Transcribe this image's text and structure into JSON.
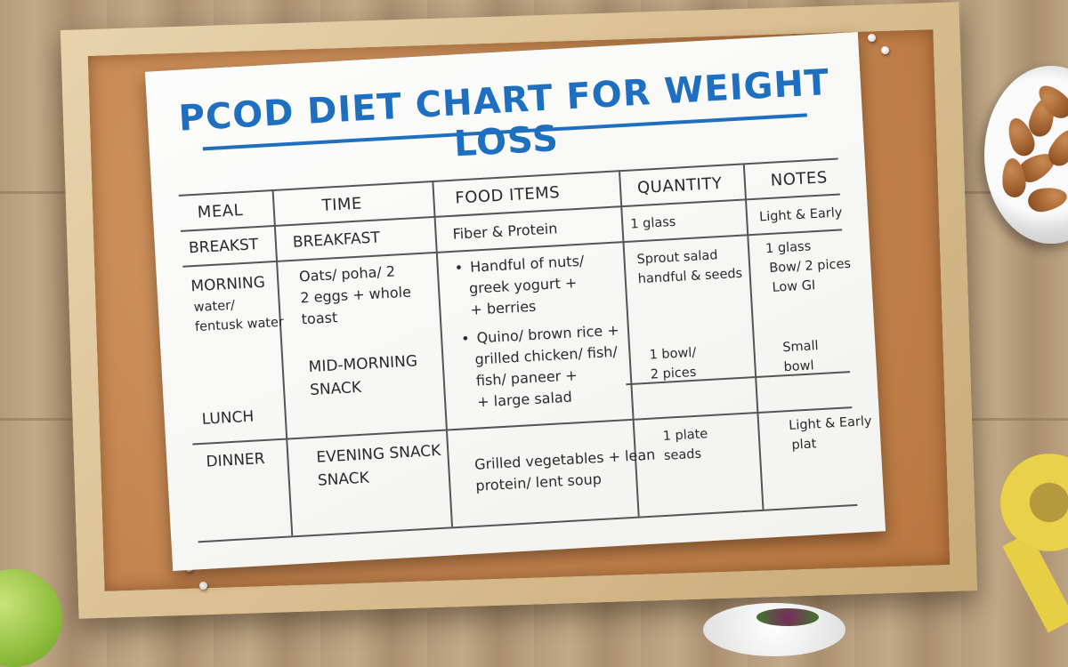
{
  "poster": {
    "title": "PCOD DIET CHART FOR WEIGHT LOSS",
    "headers": {
      "meal": "MEAL",
      "time": "TIME",
      "food_items": "FOOD ITEMS",
      "quantity": "QUANTITY",
      "notes": "NOTES"
    },
    "meal_col": [
      "BREAKST",
      "MORNING",
      "water/",
      "fentusk water",
      "LUNCH",
      "DINNER"
    ],
    "time_col": [
      "BREAKFAST",
      "Oats/ poha/ 2",
      "2 eggs + whole",
      "toast",
      "MID-MORNING",
      "SNACK",
      "EVENING SNACK",
      "SNACK"
    ],
    "food_col": {
      "r1": "Fiber & Protein",
      "b1": [
        "Handful of nuts/",
        "greek yogurt +",
        "+ berries"
      ],
      "b2": [
        "Quino/ brown rice +",
        "grilled chicken/ fish/",
        "fish/ paneer +",
        "+ large salad"
      ],
      "r4": [
        "Grilled vegetables + lean",
        "protein/ lent soup"
      ]
    },
    "quantity_col": {
      "r1": "1 glass",
      "r2": [
        "Sprout salad",
        "handful & seeds"
      ],
      "r3": [
        "1 bowl/",
        "2 pices"
      ],
      "r4": [
        "1 plate",
        "seads"
      ]
    },
    "notes_col": {
      "r1": "Light & Early",
      "r2": [
        "1 glass",
        "Bow/ 2 pices",
        "Low GI"
      ],
      "r3": [
        "Small",
        "bowl"
      ],
      "r4": [
        "Light & Early",
        "plat"
      ]
    }
  },
  "scene": {
    "cork_color": "#c4844f",
    "frame_color": "#d6bb8c",
    "title_color": "#1f6fc0",
    "objects": [
      "almond-bowl",
      "measuring-tape",
      "green-apple",
      "salad-plate"
    ]
  }
}
